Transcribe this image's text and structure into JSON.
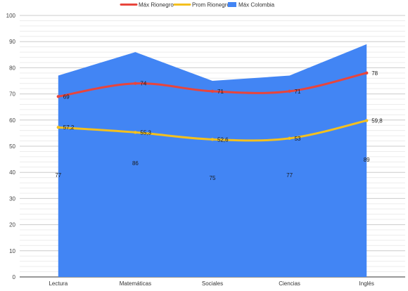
{
  "chart_data": {
    "type": "area",
    "categories": [
      "Lectura",
      "Matemáticas",
      "Sociales",
      "Ciencias",
      "Inglés"
    ],
    "series": [
      {
        "name": "Máx Rionegro",
        "type": "line",
        "smooth": true,
        "color": "#e8453c",
        "values": [
          69,
          74,
          71,
          71,
          78
        ],
        "labels": [
          "69",
          "74",
          "71",
          "71",
          "78"
        ]
      },
      {
        "name": "Prom Rionegro",
        "type": "line",
        "smooth": true,
        "color": "#f4c01e",
        "values": [
          57.2,
          55.3,
          52.6,
          53,
          59.8
        ],
        "labels": [
          "57,2",
          "55,3",
          "52,6",
          "53",
          "59,8"
        ]
      },
      {
        "name": "Máx Colombia",
        "type": "area",
        "color": "#4285f4",
        "values": [
          77,
          86,
          75,
          77,
          89
        ],
        "labels": [
          "77",
          "86",
          "75",
          "77",
          "89"
        ]
      }
    ],
    "ylim": [
      0,
      100
    ],
    "y_ticks": [
      0,
      10,
      20,
      30,
      40,
      50,
      60,
      70,
      80,
      90,
      100
    ],
    "grid": true,
    "legend_position": "top-center",
    "title": "",
    "xlabel": "",
    "ylabel": ""
  }
}
